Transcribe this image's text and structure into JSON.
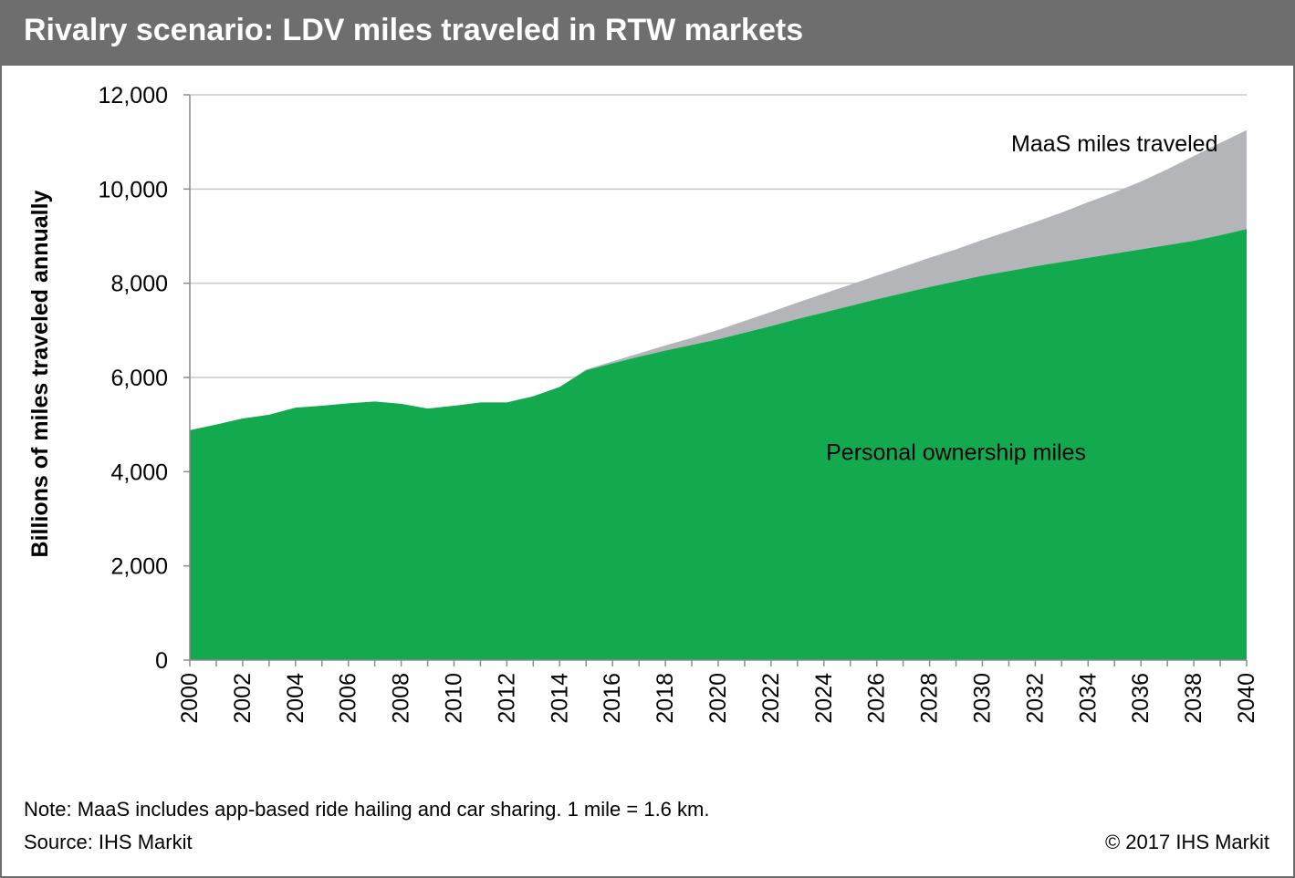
{
  "title": "Rivalry scenario: LDV miles traveled in RTW markets",
  "footer": {
    "note": "Note: MaaS includes app-based ride hailing and car sharing. 1 mile = 1.6 km.",
    "source": "Source: IHS Markit",
    "copyright": "© 2017 IHS Markit"
  },
  "colors": {
    "title_bar": "#6e6e6e",
    "personal": "#13aa4f",
    "maas": "#b4b5b8",
    "grid": "#c8c8c8"
  },
  "chart_data": {
    "type": "area",
    "stacked": true,
    "title": "Rivalry scenario: LDV miles traveled in RTW markets",
    "xlabel": "",
    "ylabel": "Billions of miles traveled annually",
    "ylim": [
      0,
      12000
    ],
    "xlim": [
      2000,
      2040
    ],
    "yticks": [
      0,
      2000,
      4000,
      6000,
      8000,
      10000,
      12000
    ],
    "ytick_labels": [
      "0",
      "2,000",
      "4,000",
      "6,000",
      "8,000",
      "10,000",
      "12,000"
    ],
    "xtick_labels": [
      "2000",
      "2002",
      "2004",
      "2006",
      "2008",
      "2010",
      "2012",
      "2014",
      "2016",
      "2018",
      "2020",
      "2022",
      "2024",
      "2026",
      "2028",
      "2030",
      "2032",
      "2034",
      "2036",
      "2038",
      "2040"
    ],
    "grid": "horizontal",
    "x": [
      2000,
      2001,
      2002,
      2003,
      2004,
      2005,
      2006,
      2007,
      2008,
      2009,
      2010,
      2011,
      2012,
      2013,
      2014,
      2015,
      2016,
      2017,
      2018,
      2019,
      2020,
      2021,
      2022,
      2023,
      2024,
      2025,
      2026,
      2027,
      2028,
      2029,
      2030,
      2031,
      2032,
      2033,
      2034,
      2035,
      2036,
      2037,
      2038,
      2039,
      2040
    ],
    "series": [
      {
        "name": "Personal ownership miles",
        "values": [
          4880,
          5000,
          5130,
          5210,
          5360,
          5400,
          5450,
          5490,
          5440,
          5340,
          5400,
          5470,
          5470,
          5600,
          5800,
          6150,
          6300,
          6440,
          6570,
          6690,
          6810,
          6950,
          7090,
          7240,
          7380,
          7520,
          7660,
          7790,
          7920,
          8040,
          8160,
          8260,
          8360,
          8450,
          8540,
          8630,
          8720,
          8810,
          8900,
          9020,
          9150
        ]
      },
      {
        "name": "MaaS miles traveled",
        "values": [
          0,
          0,
          0,
          0,
          0,
          0,
          0,
          0,
          0,
          0,
          0,
          0,
          0,
          0,
          0,
          20,
          40,
          70,
          110,
          150,
          200,
          250,
          300,
          350,
          400,
          450,
          500,
          560,
          620,
          680,
          760,
          850,
          940,
          1050,
          1180,
          1300,
          1440,
          1610,
          1800,
          1960,
          2100
        ]
      }
    ],
    "annotations": [
      "MaaS miles traveled",
      "Personal ownership miles"
    ]
  }
}
